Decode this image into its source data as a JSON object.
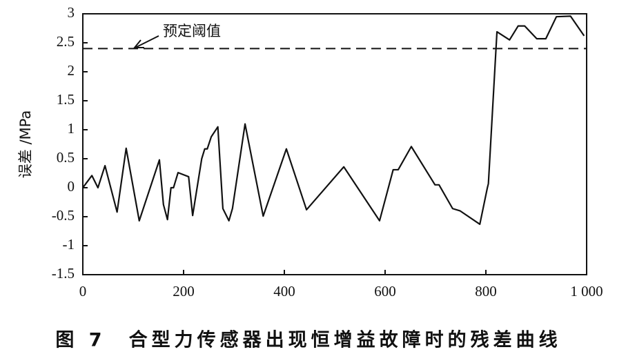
{
  "chart_data": {
    "type": "line",
    "ylabel": "误差 /MPa",
    "annotation": "预定阈值",
    "caption": "图 7　合型力传感器出现恒增益故障时的残差曲线",
    "threshold": 2.4,
    "color": "#111111",
    "x": [
      0,
      18,
      30,
      44,
      68,
      86,
      112,
      152,
      160,
      168,
      175,
      180,
      189,
      210,
      218,
      236,
      242,
      247,
      255,
      268,
      278,
      290,
      297,
      322,
      358,
      404,
      444,
      518,
      589,
      616,
      626,
      652,
      699,
      707,
      734,
      749,
      788,
      803,
      805,
      822,
      847,
      864,
      877,
      901,
      919,
      940,
      968,
      995
    ],
    "values": [
      0,
      0.21,
      0,
      0.38,
      -0.42,
      0.68,
      -0.57,
      0.48,
      -0.29,
      -0.55,
      0,
      0,
      0.26,
      0.19,
      -0.48,
      0.5,
      0.67,
      0.67,
      0.88,
      1.05,
      -0.36,
      -0.57,
      -0.36,
      1.1,
      -0.49,
      0.67,
      -0.38,
      0.36,
      -0.57,
      0.31,
      0.31,
      0.71,
      0.05,
      0.05,
      -0.36,
      -0.4,
      -0.63,
      0,
      0.07,
      2.69,
      2.55,
      2.79,
      2.79,
      2.57,
      2.57,
      2.95,
      2.96,
      2.62
    ],
    "xlim": [
      0,
      1000
    ],
    "xticks": [
      0,
      200,
      400,
      600,
      800,
      {
        "value": 1000,
        "label": "1 000"
      }
    ],
    "ylim": [
      -1.5,
      3
    ],
    "yticks": [
      -1.5,
      -1,
      -0.5,
      0,
      0.5,
      1,
      1.5,
      2,
      2.5,
      3
    ]
  }
}
